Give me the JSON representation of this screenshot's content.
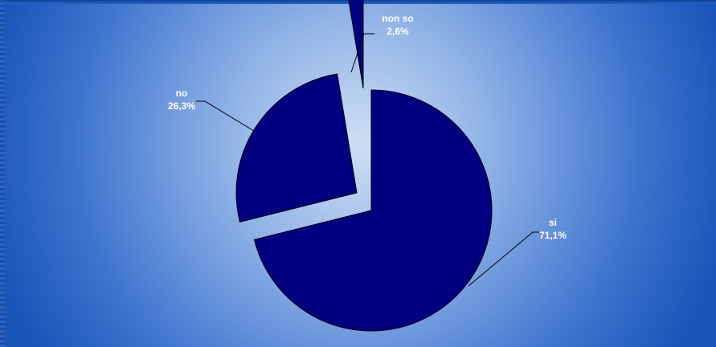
{
  "chart_data": {
    "type": "pie",
    "slices": [
      {
        "category": "si",
        "percent_label": "71,1%",
        "value": 71.1
      },
      {
        "category": "no",
        "percent_label": "26,3%",
        "value": 26.3
      },
      {
        "category": "non so",
        "percent_label": "2,6%",
        "value": 2.6
      }
    ],
    "colors": {
      "slice_fill": "#000080",
      "slice_stroke": "#000000",
      "label_text": "#ffffff",
      "background_center": "#c6d8f2",
      "background_edge": "#1a55b8"
    },
    "exploded": true,
    "legend": false
  }
}
